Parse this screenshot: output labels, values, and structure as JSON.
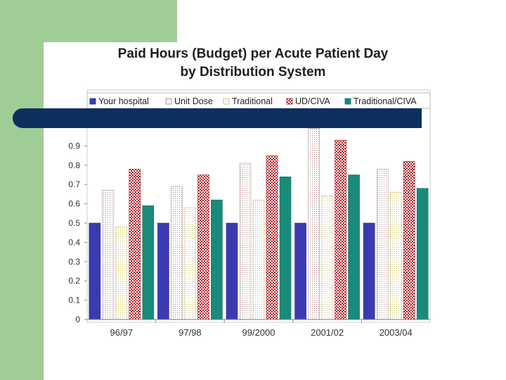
{
  "slide": {
    "title_line1": "Paid Hours (Budget) per Acute Patient Day",
    "title_line2": "by Distribution System"
  },
  "colors": {
    "green": "#9fcd95",
    "navy": "#0d2f5e"
  },
  "chart_data": {
    "type": "bar",
    "title": "Paid Hours (Budget) per Acute Patient Day by Distribution System",
    "xlabel": "",
    "ylabel": "",
    "categories": [
      "96/97",
      "97/98",
      "99/2000",
      "2001/02",
      "2003/04"
    ],
    "series": [
      {
        "name": "Your hospital",
        "values": [
          0.5,
          0.5,
          0.5,
          0.5,
          0.5
        ],
        "pattern": "solid",
        "color": "#3b3bb0"
      },
      {
        "name": "Unit Dose",
        "values": [
          0.67,
          0.69,
          0.81,
          0.99,
          0.78
        ],
        "pattern": "dotted",
        "color": "#c0a0a0"
      },
      {
        "name": "Traditional",
        "values": [
          0.48,
          0.58,
          0.62,
          0.64,
          0.66
        ],
        "pattern": "dotted",
        "color": "#d8d890"
      },
      {
        "name": "UD/CIVA",
        "values": [
          0.78,
          0.75,
          0.85,
          0.93,
          0.82
        ],
        "pattern": "checker",
        "color": "#c0202a"
      },
      {
        "name": "Traditional/CIVA",
        "values": [
          0.59,
          0.62,
          0.74,
          0.75,
          0.68
        ],
        "pattern": "solid",
        "color": "#1a8a7a"
      }
    ],
    "yticks": [
      "0",
      "0.1",
      "0.2",
      "0.3",
      "0.4",
      "0.5",
      "0.6",
      "0.7",
      "0.8",
      "0.9"
    ],
    "ylim": [
      0,
      1.0
    ],
    "legend": "top",
    "grid": false
  }
}
